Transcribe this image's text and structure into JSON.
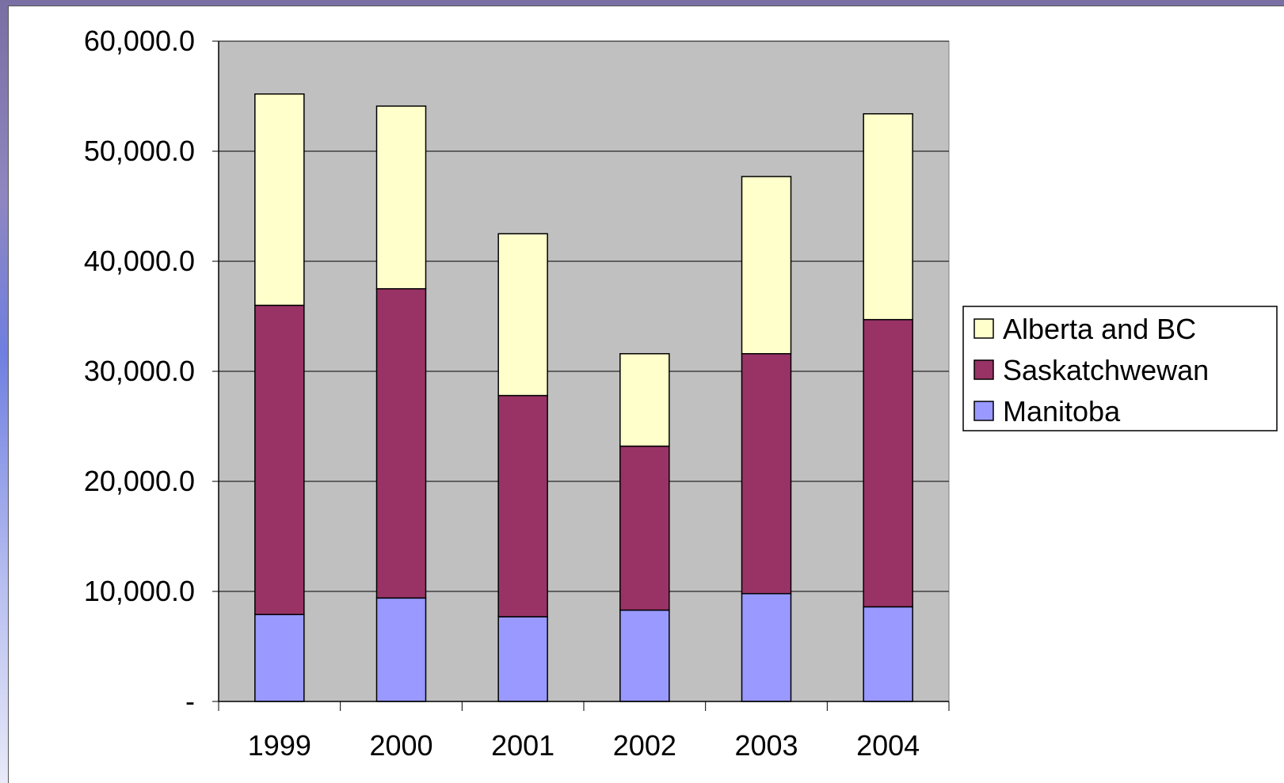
{
  "chart_data": {
    "type": "bar",
    "stacked": true,
    "categories": [
      "1999",
      "2000",
      "2001",
      "2002",
      "2003",
      "2004"
    ],
    "series": [
      {
        "name": "Manitoba",
        "color": "#9999ff",
        "values": [
          7900,
          9400,
          7700,
          8300,
          9800,
          8600
        ]
      },
      {
        "name": "Saskatchwewan",
        "color": "#993366",
        "values": [
          28100,
          28100,
          20100,
          14900,
          21800,
          26100
        ]
      },
      {
        "name": "Alberta and BC",
        "color": "#ffffcc",
        "values": [
          19200,
          16600,
          14700,
          8400,
          16100,
          18700
        ]
      }
    ],
    "ylim": [
      0,
      60000
    ],
    "yticks": [
      {
        "value": 0,
        "label": "-"
      },
      {
        "value": 10000,
        "label": "10,000.0"
      },
      {
        "value": 20000,
        "label": "20,000.0"
      },
      {
        "value": 30000,
        "label": "30,000.0"
      },
      {
        "value": 40000,
        "label": "40,000.0"
      },
      {
        "value": 50000,
        "label": "50,000.0"
      },
      {
        "value": 60000,
        "label": "60,000.0"
      }
    ],
    "plot_background": "#c0c0c0",
    "grid": true,
    "legend_position": "right",
    "legend_order": [
      "Alberta and BC",
      "Saskatchwewan",
      "Manitoba"
    ],
    "title": "",
    "xlabel": "",
    "ylabel": ""
  }
}
